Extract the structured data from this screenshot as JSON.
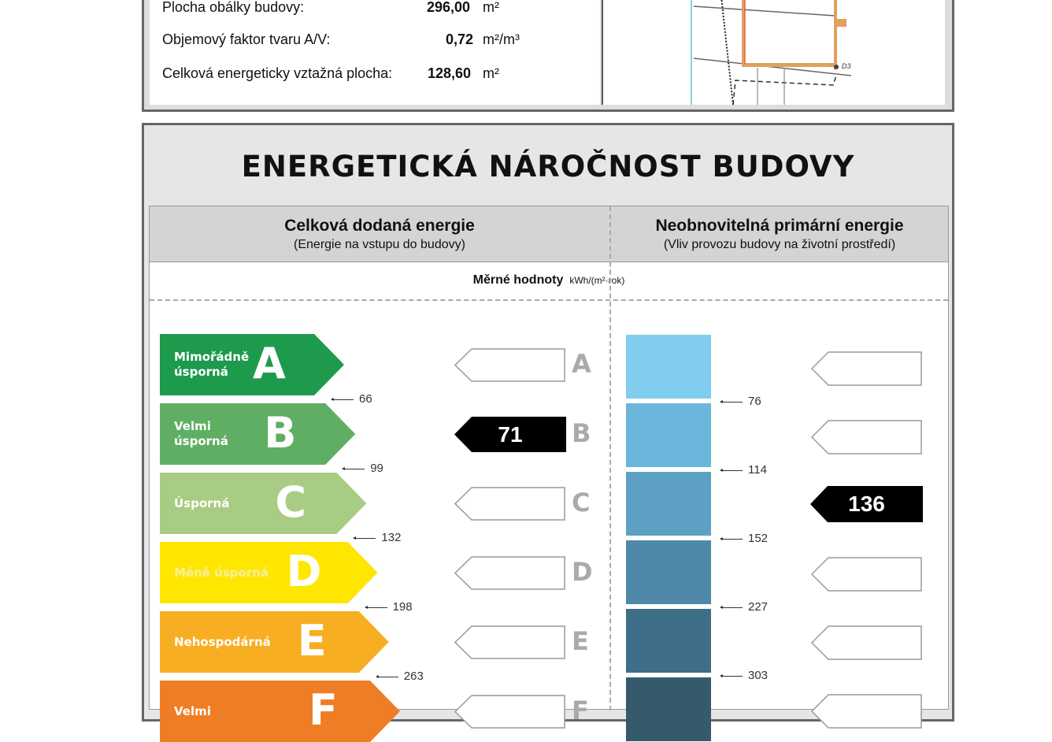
{
  "parameters": [
    {
      "label": "Plocha obálky budovy:",
      "value": "296,00",
      "unit": "m²"
    },
    {
      "label": "Objemový faktor tvaru A/V:",
      "value": "0,72",
      "unit": "m²/m³"
    },
    {
      "label": "Celková energeticky vztažná plocha:",
      "value": "128,60",
      "unit": "m²"
    }
  ],
  "map_label": "D3",
  "title": "ENERGETICKÁ NÁROČNOST BUDOVY",
  "columns": [
    {
      "title": "Celková dodaná energie",
      "subtitle": "(Energie na vstupu do budovy)"
    },
    {
      "title": "Neobnovitelná primární energie",
      "subtitle": "(Vliv provozu budovy na životní prostředí)"
    }
  ],
  "specific_values": {
    "label": "Měrné hodnoty",
    "unit": "kWh/(m²·rok)"
  },
  "classes": [
    {
      "letter": "A",
      "name": "Mimořádně\núsporná",
      "color": "#1e9a4c"
    },
    {
      "letter": "B",
      "name": "Velmi\núsporná",
      "color": "#5fae64"
    },
    {
      "letter": "C",
      "name": "Úsporná",
      "color": "#a8cc84"
    },
    {
      "letter": "D",
      "name": "Méně úsporná",
      "color": "#ffe600"
    },
    {
      "letter": "E",
      "name": "Nehospodárná",
      "color": "#f7ae22"
    },
    {
      "letter": "F",
      "name": "Velmi",
      "color": "#ef7d25"
    }
  ],
  "delivered_thresholds": [
    "66",
    "99",
    "132",
    "198",
    "263"
  ],
  "primary_thresholds": [
    "76",
    "114",
    "152",
    "227",
    "303"
  ],
  "primary_colors": [
    "#80cdef",
    "#6bb7dc",
    "#5ca1c4",
    "#4e89aa",
    "#3f6e88",
    "#345a6c"
  ],
  "delivered_result": {
    "value": "71",
    "class": "B"
  },
  "primary_result": {
    "value": "136",
    "class": "C"
  }
}
